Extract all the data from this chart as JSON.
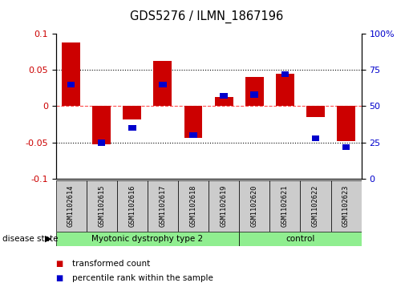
{
  "title": "GDS5276 / ILMN_1867196",
  "samples": [
    "GSM1102614",
    "GSM1102615",
    "GSM1102616",
    "GSM1102617",
    "GSM1102618",
    "GSM1102619",
    "GSM1102620",
    "GSM1102621",
    "GSM1102622",
    "GSM1102623"
  ],
  "red_values": [
    0.088,
    -0.052,
    -0.018,
    0.062,
    -0.043,
    0.013,
    0.04,
    0.045,
    -0.015,
    -0.048
  ],
  "blue_pct": [
    65,
    25,
    35,
    65,
    30,
    57,
    58,
    72,
    28,
    22
  ],
  "disease_groups": [
    {
      "label": "Myotonic dystrophy type 2",
      "start": 0,
      "end": 6,
      "color": "#90EE90"
    },
    {
      "label": "control",
      "start": 6,
      "end": 10,
      "color": "#90EE90"
    }
  ],
  "ylim": [
    -0.1,
    0.1
  ],
  "y2lim": [
    0,
    100
  ],
  "yticks": [
    -0.1,
    -0.05,
    0.0,
    0.05,
    0.1
  ],
  "ytick_labels": [
    "-0.1",
    "-0.05",
    "0",
    "0.05",
    "0.1"
  ],
  "y2ticks": [
    0,
    25,
    50,
    75,
    100
  ],
  "y2ticklabels": [
    "0",
    "25",
    "50",
    "75",
    "100%"
  ],
  "red_color": "#CC0000",
  "blue_color": "#0000CC",
  "bar_width": 0.6,
  "blue_bar_width": 0.25,
  "legend_items": [
    "transformed count",
    "percentile rank within the sample"
  ],
  "legend_colors": [
    "#CC0000",
    "#0000CC"
  ],
  "disease_state_label": "disease state",
  "sample_box_color": "#cccccc",
  "plot_bg": "#ffffff"
}
